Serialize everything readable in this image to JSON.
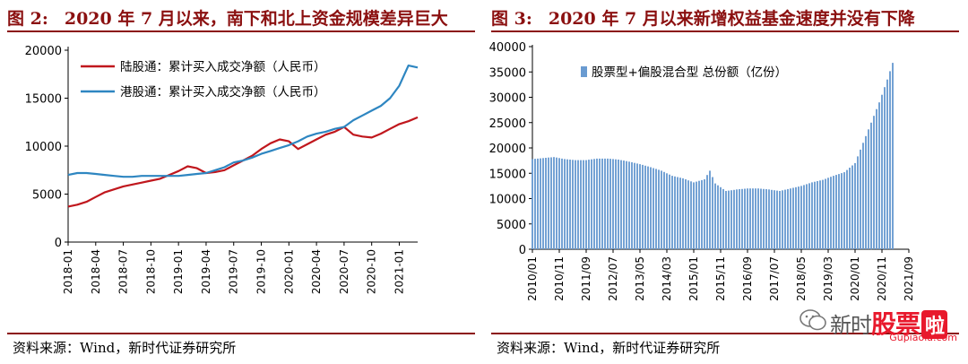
{
  "left_panel": {
    "figure_no": "图 2:",
    "title": "2020 年 7 月以来，南下和北上资金规模差异巨大",
    "source": "资料来源：Wind，新时代证券研究所"
  },
  "right_panel": {
    "figure_no": "图 3:",
    "title": "2020 年 7 月以来新增权益基金速度并没有下降",
    "source": "资料来源：Wind，新时代证券研究所"
  },
  "watermark": {
    "text_a": "新时",
    "text_b": "股票",
    "text_c": "啦",
    "url": "Gupiaola.com"
  },
  "chart_data": [
    {
      "type": "line",
      "ylim": [
        0,
        20000
      ],
      "yticks": [
        0,
        5000,
        10000,
        15000,
        20000
      ],
      "xlim": [
        "2018-01",
        "2021-03"
      ],
      "xticks": [
        "2018-01",
        "2018-04",
        "2018-07",
        "2018-10",
        "2019-01",
        "2019-04",
        "2019-07",
        "2019-10",
        "2020-01",
        "2020-04",
        "2020-07",
        "2020-10",
        "2021-01"
      ],
      "legend_placement": "top-left",
      "series": [
        {
          "name": "陆股通：累计买入成交净额（人民币）",
          "color": "#c0171d",
          "x": [
            "2018-01",
            "2018-02",
            "2018-03",
            "2018-04",
            "2018-05",
            "2018-06",
            "2018-07",
            "2018-08",
            "2018-09",
            "2018-10",
            "2018-11",
            "2018-12",
            "2019-01",
            "2019-02",
            "2019-03",
            "2019-04",
            "2019-05",
            "2019-06",
            "2019-07",
            "2019-08",
            "2019-09",
            "2019-10",
            "2019-11",
            "2019-12",
            "2020-01",
            "2020-02",
            "2020-03",
            "2020-04",
            "2020-05",
            "2020-06",
            "2020-07",
            "2020-08",
            "2020-09",
            "2020-10",
            "2020-11",
            "2020-12",
            "2021-01",
            "2021-02",
            "2021-03"
          ],
          "values": [
            3700,
            3900,
            4200,
            4700,
            5200,
            5500,
            5800,
            6000,
            6200,
            6400,
            6600,
            7000,
            7400,
            7900,
            7700,
            7200,
            7300,
            7500,
            8000,
            8500,
            9000,
            9700,
            10300,
            10700,
            10500,
            9700,
            10200,
            10700,
            11200,
            11500,
            12000,
            11200,
            11000,
            10900,
            11300,
            11800,
            12300,
            12600,
            13000
          ]
        },
        {
          "name": "港股通：累计买入成交净额（人民币）",
          "color": "#2e86c1",
          "x": [
            "2018-01",
            "2018-02",
            "2018-03",
            "2018-04",
            "2018-05",
            "2018-06",
            "2018-07",
            "2018-08",
            "2018-09",
            "2018-10",
            "2018-11",
            "2018-12",
            "2019-01",
            "2019-02",
            "2019-03",
            "2019-04",
            "2019-05",
            "2019-06",
            "2019-07",
            "2019-08",
            "2019-09",
            "2019-10",
            "2019-11",
            "2019-12",
            "2020-01",
            "2020-02",
            "2020-03",
            "2020-04",
            "2020-05",
            "2020-06",
            "2020-07",
            "2020-08",
            "2020-09",
            "2020-10",
            "2020-11",
            "2020-12",
            "2021-01",
            "2021-02",
            "2021-03"
          ],
          "values": [
            7000,
            7200,
            7200,
            7100,
            7000,
            6900,
            6800,
            6800,
            6900,
            6900,
            6900,
            6900,
            6900,
            7000,
            7100,
            7200,
            7500,
            7800,
            8300,
            8500,
            8800,
            9200,
            9500,
            9800,
            10100,
            10500,
            11000,
            11300,
            11500,
            11800,
            12000,
            12700,
            13200,
            13700,
            14200,
            15000,
            16300,
            18400,
            18200
          ]
        }
      ]
    },
    {
      "type": "bar",
      "ylim": [
        0,
        40000
      ],
      "yticks": [
        0,
        5000,
        10000,
        15000,
        20000,
        25000,
        30000,
        35000,
        40000
      ],
      "xticks": [
        "2010/01",
        "2010/11",
        "2011/09",
        "2012/07",
        "2013/05",
        "2014/03",
        "2015/01",
        "2015/11",
        "2016/09",
        "2017/07",
        "2018/05",
        "2019/03",
        "2020/01",
        "2020/11",
        "2021/09"
      ],
      "legend_placement": "top-left",
      "series": [
        {
          "name": "股票型+偏股混合型 总份额（亿份）",
          "color": "#6a9bd1",
          "x": [
            "2010/01",
            "2010/05",
            "2010/09",
            "2011/01",
            "2011/05",
            "2011/09",
            "2012/01",
            "2012/05",
            "2012/09",
            "2013/01",
            "2013/05",
            "2013/09",
            "2014/01",
            "2014/05",
            "2014/09",
            "2015/01",
            "2015/03",
            "2015/05",
            "2015/07",
            "2015/09",
            "2016/01",
            "2016/05",
            "2016/09",
            "2017/01",
            "2017/05",
            "2017/09",
            "2018/01",
            "2018/05",
            "2018/09",
            "2019/01",
            "2019/05",
            "2019/09",
            "2020/01",
            "2020/04",
            "2020/07",
            "2020/10",
            "2021/01",
            "2021/03"
          ],
          "values": [
            17800,
            18000,
            18200,
            17800,
            17600,
            17600,
            17900,
            17900,
            17700,
            17300,
            16800,
            16200,
            15500,
            14500,
            14000,
            13200,
            13500,
            13800,
            15500,
            13000,
            11500,
            11800,
            12000,
            12000,
            11800,
            11500,
            12000,
            12500,
            13200,
            13700,
            14500,
            15200,
            17000,
            21000,
            25000,
            29000,
            33500,
            36800
          ]
        }
      ]
    }
  ]
}
